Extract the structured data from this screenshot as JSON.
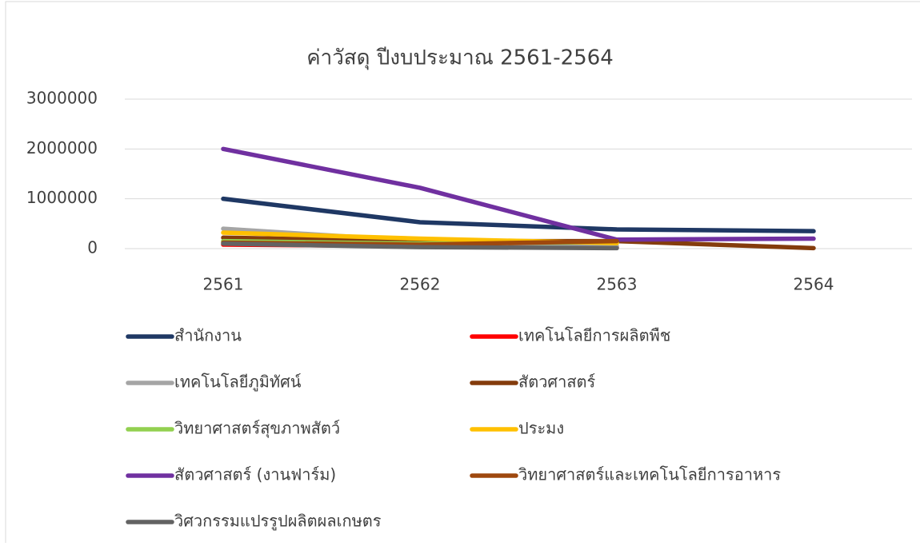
{
  "chart_data": {
    "type": "line",
    "title": "ค่าวัสดุ ปีงบประมาณ 2561-2564",
    "categories": [
      "2561",
      "2562",
      "2563",
      "2564"
    ],
    "series": [
      {
        "name": "สำนักงาน",
        "color": "#1f3864",
        "values": [
          1000000,
          530000,
          385000,
          350000
        ]
      },
      {
        "name": "เทคโนโลยีการผลิตพืช",
        "color": "#ff0000",
        "values": [
          80000,
          50000,
          30000,
          null
        ]
      },
      {
        "name": "เทคโนโลยีภูมิทัศน์",
        "color": "#a5a5a5",
        "values": [
          400000,
          150000,
          50000,
          null
        ]
      },
      {
        "name": "สัตวศาสตร์",
        "color": "#843c0c",
        "values": [
          220000,
          150000,
          150000,
          10000
        ]
      },
      {
        "name": "วิทยาศาสตร์สุขภาพสัตว์",
        "color": "#92d050",
        "values": [
          150000,
          100000,
          130000,
          null
        ]
      },
      {
        "name": "ประมง",
        "color": "#ffc000",
        "values": [
          320000,
          200000,
          110000,
          null
        ]
      },
      {
        "name": "สัตวศาสตร์ (งานฟาร์ม)",
        "color": "#7030a0",
        "values": [
          2000000,
          1220000,
          180000,
          200000
        ]
      },
      {
        "name": "วิทยาศาสตร์และเทคโนโลยีการอาหาร",
        "color": "#9e480e",
        "values": [
          120000,
          80000,
          150000,
          null
        ]
      },
      {
        "name": "วิศวกรรมแปรรูปผลิตผลเกษตร",
        "color": "#636363",
        "values": [
          100000,
          30000,
          10000,
          null
        ]
      }
    ],
    "ylim": [
      0,
      3000000
    ],
    "yticks": [
      0,
      1000000,
      2000000,
      3000000
    ],
    "grid": true,
    "legend": "bottom"
  }
}
